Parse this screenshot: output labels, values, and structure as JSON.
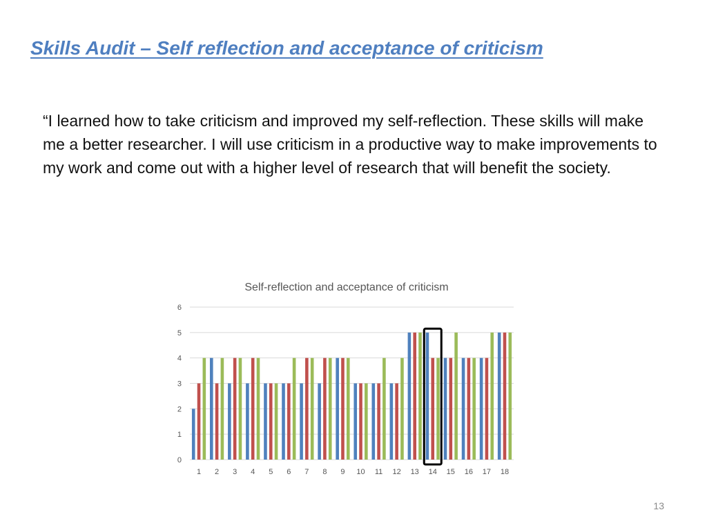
{
  "slide": {
    "title": "Skills Audit – Self reflection and acceptance of criticism",
    "quote": "“I learned how to take criticism and improved my self-reflection. These skills will make me a better researcher. I will use criticism in a productive way to make improvements to my work and come out with a higher level of research that will benefit the society.",
    "page_number": "13"
  },
  "chart_data": {
    "type": "bar",
    "title": "Self-reflection and acceptance of criticism",
    "xlabel": "",
    "ylabel": "",
    "categories": [
      "1",
      "2",
      "3",
      "4",
      "5",
      "6",
      "7",
      "8",
      "9",
      "10",
      "11",
      "12",
      "13",
      "14",
      "15",
      "16",
      "17",
      "18"
    ],
    "series": [
      {
        "values": [
          2,
          4,
          3,
          3,
          3,
          3,
          3,
          3,
          4,
          3,
          3,
          3,
          5,
          5,
          4,
          4,
          4,
          5
        ],
        "color": "#4f81bd"
      },
      {
        "values": [
          3,
          3,
          4,
          4,
          3,
          3,
          4,
          4,
          4,
          3,
          3,
          3,
          5,
          4,
          4,
          4,
          4,
          5
        ],
        "color": "#c0504d"
      },
      {
        "values": [
          4,
          4,
          4,
          4,
          3,
          4,
          4,
          4,
          4,
          3,
          4,
          4,
          5,
          4,
          5,
          4,
          5,
          5
        ],
        "color": "#9bbb59"
      }
    ],
    "ylim": [
      0,
      6
    ],
    "yticks": [
      0,
      1,
      2,
      3,
      4,
      5,
      6
    ],
    "grid": true,
    "legend": "none",
    "highlight_category": "14",
    "highlight_color": "#000000"
  }
}
